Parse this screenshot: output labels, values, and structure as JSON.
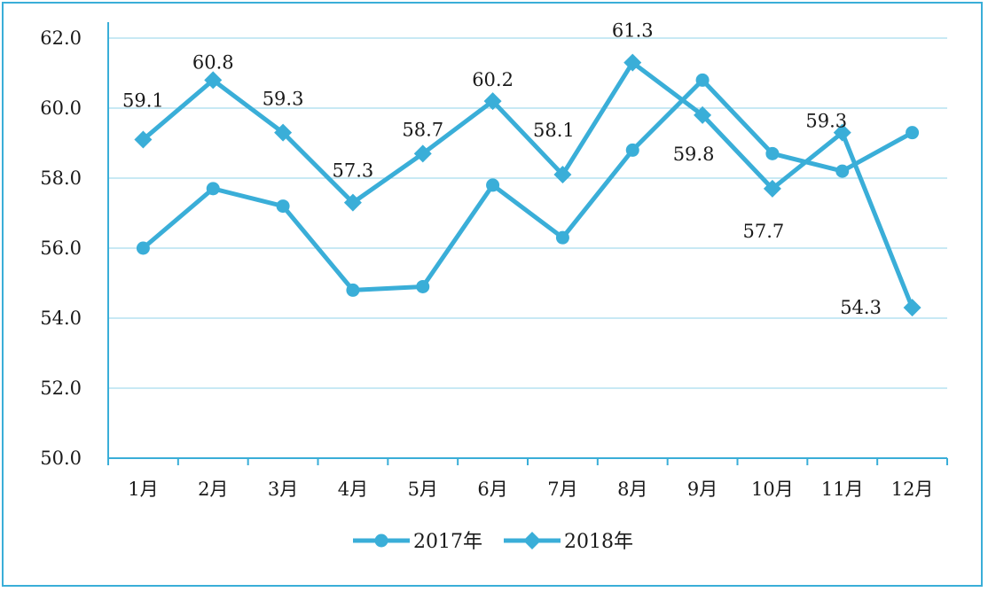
{
  "chart_data": {
    "type": "line",
    "title": "",
    "xlabel": "",
    "ylabel": "",
    "categories": [
      "1月",
      "2月",
      "3月",
      "4月",
      "5月",
      "6月",
      "7月",
      "8月",
      "9月",
      "10月",
      "11月",
      "12月"
    ],
    "ylim": [
      50.0,
      62.0
    ],
    "yticks": [
      "50.0",
      "52.0",
      "54.0",
      "56.0",
      "58.0",
      "60.0",
      "62.0"
    ],
    "grid": true,
    "legend_position": "bottom",
    "series": [
      {
        "name": "2017年",
        "marker": "circle",
        "color": "#3aaed8",
        "values": [
          56.0,
          57.7,
          57.2,
          54.8,
          54.9,
          57.8,
          56.3,
          58.8,
          60.8,
          58.7,
          58.2,
          59.3
        ],
        "labels": []
      },
      {
        "name": "2018年",
        "marker": "diamond",
        "color": "#3aaed8",
        "values": [
          59.1,
          60.8,
          59.3,
          57.3,
          58.7,
          60.2,
          58.1,
          61.3,
          59.8,
          57.7,
          59.3,
          54.3
        ],
        "labels": [
          "59.1",
          "60.8",
          "59.3",
          "57.3",
          "58.7",
          "60.2",
          "58.1",
          "61.3",
          "59.8",
          "57.7",
          "59.3",
          "54.3"
        ]
      }
    ]
  }
}
